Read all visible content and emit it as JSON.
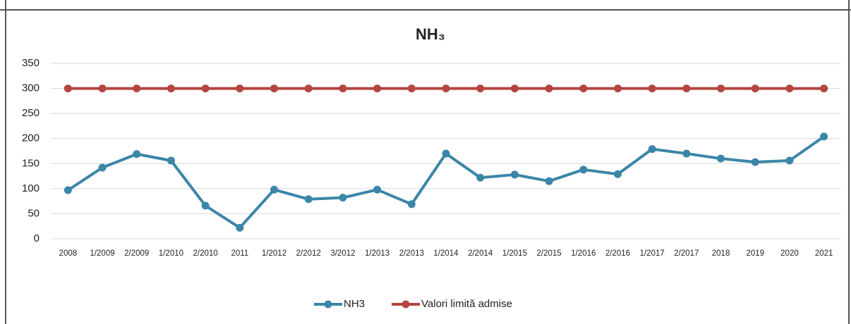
{
  "chart_data": {
    "type": "line",
    "title": "NH₃",
    "categories": [
      "2008",
      "1/2009",
      "2/2009",
      "1/2010",
      "2/2010",
      "2011",
      "1/2012",
      "2/2012",
      "3/2012",
      "1/2013",
      "2/2013",
      "1/2014",
      "2/2014",
      "1/2015",
      "2/2015",
      "1/2016",
      "2/2016",
      "1/2017",
      "2/2017",
      "2018",
      "2019",
      "2020",
      "2021"
    ],
    "series": [
      {
        "name": "NH3",
        "color": "#3b86a8",
        "values": [
          97,
          142,
          169,
          156,
          66,
          22,
          98,
          79,
          82,
          98,
          69,
          170,
          122,
          128,
          115,
          138,
          129,
          179,
          170,
          160,
          153,
          156,
          204
        ]
      },
      {
        "name": "Valori limită admise",
        "color": "#b5453f",
        "values": [
          300,
          300,
          300,
          300,
          300,
          300,
          300,
          300,
          300,
          300,
          300,
          300,
          300,
          300,
          300,
          300,
          300,
          300,
          300,
          300,
          300,
          300,
          300
        ]
      }
    ],
    "ylim": [
      0,
      350
    ],
    "yticks": [
      0,
      50,
      100,
      150,
      200,
      250,
      300,
      350
    ],
    "grid": true,
    "legend": "bottom"
  }
}
